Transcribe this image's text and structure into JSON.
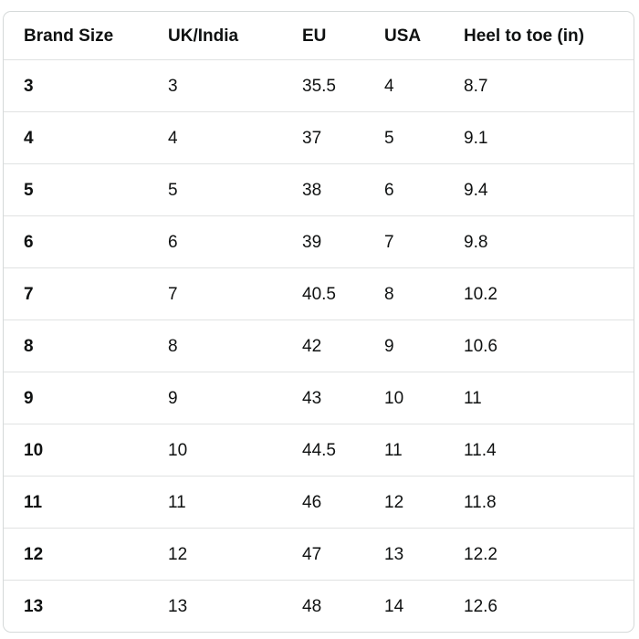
{
  "size_chart": {
    "columns": [
      "Brand Size",
      "UK/India",
      "EU",
      "USA",
      "Heel to toe (in)"
    ],
    "rows": [
      [
        "3",
        "3",
        "35.5",
        "4",
        "8.7"
      ],
      [
        "4",
        "4",
        "37",
        "5",
        "9.1"
      ],
      [
        "5",
        "5",
        "38",
        "6",
        "9.4"
      ],
      [
        "6",
        "6",
        "39",
        "7",
        "9.8"
      ],
      [
        "7",
        "7",
        "40.5",
        "8",
        "10.2"
      ],
      [
        "8",
        "8",
        "42",
        "9",
        "10.6"
      ],
      [
        "9",
        "9",
        "43",
        "10",
        "11"
      ],
      [
        "10",
        "10",
        "44.5",
        "11",
        "11.4"
      ],
      [
        "11",
        "11",
        "46",
        "12",
        "11.8"
      ],
      [
        "12",
        "12",
        "47",
        "13",
        "12.2"
      ],
      [
        "13",
        "13",
        "48",
        "14",
        "12.6"
      ]
    ],
    "colors": {
      "border": "#d5d9d9",
      "divider": "#e0e2e2",
      "text": "#0f1111",
      "background": "#ffffff"
    }
  }
}
